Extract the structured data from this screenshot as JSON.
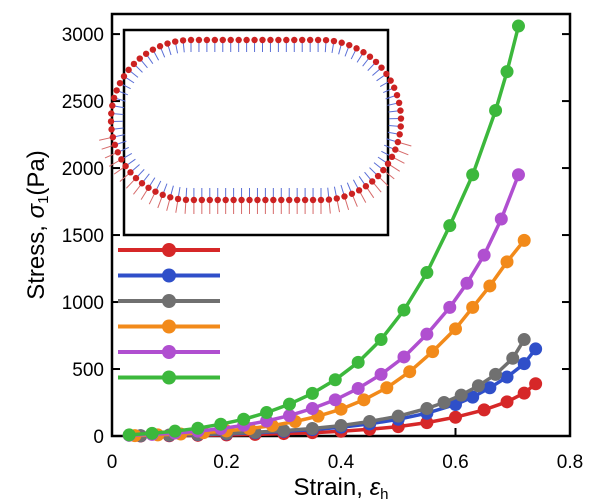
{
  "chart_data": {
    "type": "line",
    "xlabel": "Strain, ",
    "xlabel_symbol": "ε",
    "xlabel_sub": "h",
    "ylabel": "Stress, ",
    "ylabel_symbol": "σ",
    "ylabel_sub": "1",
    "ylabel_unit": "(Pa)",
    "xlim": [
      0,
      0.8
    ],
    "ylim": [
      0,
      3150
    ],
    "x_ticks": [
      "0",
      "0.2",
      "0.4",
      "0.6",
      "0.8"
    ],
    "y_ticks": [
      "0",
      "500",
      "1000",
      "1500",
      "2000",
      "2500",
      "3000"
    ],
    "grid": false,
    "legend_position": "left, unlabeled line samples",
    "inset": "membrane outline with force vectors",
    "series": [
      {
        "color": "#d62728",
        "x": [
          0.05,
          0.1,
          0.15,
          0.2,
          0.25,
          0.3,
          0.35,
          0.4,
          0.45,
          0.5,
          0.55,
          0.6,
          0.65,
          0.69,
          0.72,
          0.74
        ],
        "y": [
          0,
          2,
          5,
          8,
          12,
          18,
          25,
          35,
          50,
          70,
          100,
          140,
          195,
          255,
          320,
          390
        ]
      },
      {
        "color": "#2f4fc9",
        "x": [
          0.05,
          0.1,
          0.15,
          0.2,
          0.25,
          0.3,
          0.35,
          0.4,
          0.45,
          0.5,
          0.55,
          0.6,
          0.63,
          0.66,
          0.69,
          0.72,
          0.74
        ],
        "y": [
          2,
          5,
          10,
          16,
          24,
          34,
          48,
          66,
          90,
          125,
          170,
          235,
          290,
          360,
          440,
          540,
          650
        ]
      },
      {
        "color": "#707070",
        "x": [
          0.05,
          0.1,
          0.15,
          0.2,
          0.25,
          0.3,
          0.35,
          0.4,
          0.45,
          0.5,
          0.55,
          0.58,
          0.61,
          0.64,
          0.67,
          0.7,
          0.72
        ],
        "y": [
          3,
          7,
          12,
          19,
          28,
          40,
          56,
          78,
          108,
          148,
          205,
          250,
          305,
          375,
          460,
          580,
          720
        ]
      },
      {
        "color": "#f28a1a",
        "x": [
          0.04,
          0.08,
          0.12,
          0.16,
          0.2,
          0.24,
          0.28,
          0.32,
          0.36,
          0.4,
          0.44,
          0.48,
          0.52,
          0.56,
          0.6,
          0.63,
          0.66,
          0.69,
          0.72
        ],
        "y": [
          3,
          8,
          15,
          25,
          38,
          55,
          78,
          108,
          148,
          200,
          270,
          360,
          480,
          630,
          800,
          960,
          1120,
          1300,
          1460
        ]
      },
      {
        "color": "#b04fd0",
        "x": [
          0.03,
          0.07,
          0.11,
          0.15,
          0.19,
          0.23,
          0.27,
          0.31,
          0.35,
          0.39,
          0.43,
          0.47,
          0.51,
          0.55,
          0.59,
          0.62,
          0.65,
          0.68,
          0.71
        ],
        "y": [
          5,
          12,
          22,
          36,
          55,
          80,
          112,
          152,
          205,
          270,
          355,
          460,
          590,
          760,
          960,
          1140,
          1350,
          1620,
          1950
        ]
      },
      {
        "color": "#3cb83c",
        "x": [
          0.03,
          0.07,
          0.11,
          0.15,
          0.19,
          0.23,
          0.27,
          0.31,
          0.35,
          0.39,
          0.43,
          0.47,
          0.51,
          0.55,
          0.59,
          0.63,
          0.67,
          0.69,
          0.71
        ],
        "y": [
          8,
          20,
          36,
          58,
          88,
          125,
          175,
          238,
          318,
          420,
          550,
          720,
          940,
          1220,
          1570,
          1950,
          2430,
          2720,
          3060
        ]
      }
    ]
  }
}
